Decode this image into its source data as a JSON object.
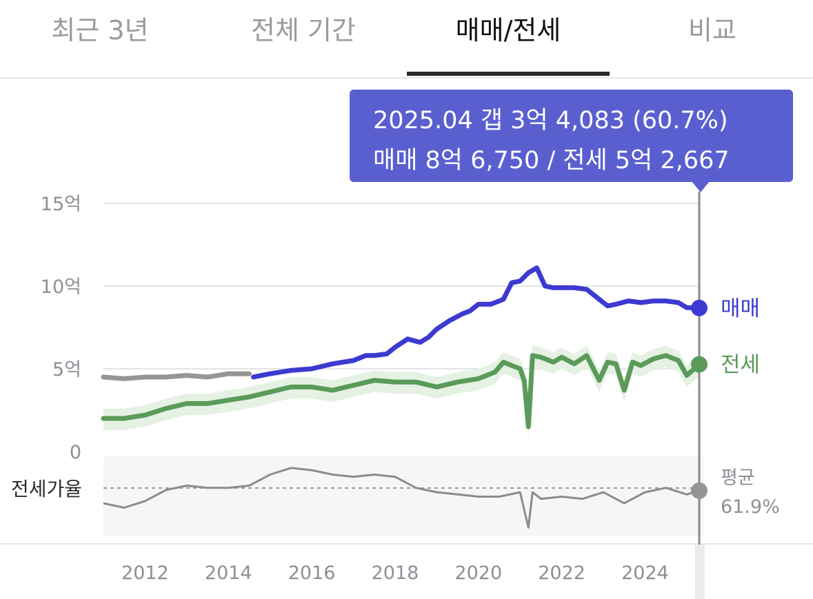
{
  "tabs": [
    {
      "label": "최근 3년",
      "active": false
    },
    {
      "label": "전체 기간",
      "active": false
    },
    {
      "label": "매매/전세",
      "active": true
    },
    {
      "label": "비교",
      "active": false
    }
  ],
  "tooltip": {
    "line1": "2025.04  갭 3억 4,083 (60.7%)",
    "line2": "매매 8억 6,750 / 전세 5억 2,667"
  },
  "colors": {
    "sale": "#3d3ad1",
    "jeonse": "#5a9a5a",
    "band": "#e5f2e3",
    "grey": "#959595",
    "tooltip_bg": "#5a5fd0",
    "grid": "#e4e4e6",
    "ratio_bg": "#f6f6f7"
  },
  "chart_data": {
    "type": "line",
    "ylabel": "",
    "y_unit": "억",
    "ylim": [
      0,
      15
    ],
    "y_ticks": [
      0,
      5,
      10,
      15
    ],
    "y_tick_labels": [
      "0",
      "5억",
      "10억",
      "15억"
    ],
    "xlim": [
      2011.0,
      2025.3
    ],
    "x_ticks": [
      2012,
      2014,
      2016,
      2018,
      2020,
      2022,
      2024
    ],
    "x_tick_labels": [
      "2012",
      "2014",
      "2016",
      "2018",
      "2020",
      "2022",
      "2024"
    ],
    "grid": true,
    "legend": "right-end labels",
    "highlight": {
      "x": 2025.3,
      "label": "2025.04"
    },
    "series": [
      {
        "name": "매매",
        "x": [
          2011.0,
          2011.5,
          2012.0,
          2012.5,
          2013.0,
          2013.5,
          2014.0,
          2014.5
        ],
        "y": [
          4.5,
          4.4,
          4.5,
          4.5,
          4.6,
          4.5,
          4.7,
          4.7
        ],
        "style": "early-grey"
      },
      {
        "name": "매매",
        "x": [
          2014.6,
          2015.0,
          2015.5,
          2016.0,
          2016.5,
          2017.0,
          2017.3,
          2017.5,
          2017.8,
          2018.0,
          2018.3,
          2018.6,
          2018.8,
          2019.0,
          2019.3,
          2019.6,
          2019.8,
          2020.0,
          2020.3,
          2020.6,
          2020.8,
          2021.0,
          2021.2,
          2021.4,
          2021.6,
          2021.8,
          2022.0,
          2022.3,
          2022.6,
          2022.9,
          2023.1,
          2023.3,
          2023.6,
          2023.9,
          2024.2,
          2024.5,
          2024.8,
          2025.0,
          2025.3
        ],
        "y": [
          4.5,
          4.7,
          4.9,
          5.0,
          5.3,
          5.5,
          5.8,
          5.8,
          5.9,
          6.3,
          6.8,
          6.6,
          6.9,
          7.4,
          7.9,
          8.3,
          8.5,
          8.9,
          8.9,
          9.2,
          10.2,
          10.3,
          10.8,
          11.1,
          10.0,
          9.9,
          9.9,
          9.9,
          9.8,
          9.2,
          8.8,
          8.9,
          9.1,
          9.0,
          9.1,
          9.1,
          9.0,
          8.7,
          8.675
        ],
        "style": "main"
      },
      {
        "name": "전세",
        "x": [
          2011.0,
          2011.5,
          2012.0,
          2012.5,
          2013.0,
          2013.5,
          2014.0,
          2014.5,
          2015.0,
          2015.5,
          2016.0,
          2016.5,
          2017.0,
          2017.5,
          2018.0,
          2018.5,
          2019.0,
          2019.5,
          2020.0,
          2020.4,
          2020.6,
          2020.8,
          2021.0,
          2021.1,
          2021.2,
          2021.3,
          2021.5,
          2021.8,
          2022.0,
          2022.3,
          2022.6,
          2022.9,
          2023.1,
          2023.3,
          2023.5,
          2023.7,
          2023.9,
          2024.2,
          2024.5,
          2024.8,
          2025.0,
          2025.3
        ],
        "y": [
          2.0,
          2.0,
          2.2,
          2.6,
          2.9,
          2.9,
          3.1,
          3.3,
          3.6,
          3.9,
          3.9,
          3.7,
          4.0,
          4.3,
          4.2,
          4.2,
          3.9,
          4.2,
          4.4,
          4.8,
          5.4,
          5.2,
          5.0,
          4.3,
          1.5,
          5.8,
          5.7,
          5.4,
          5.7,
          5.3,
          5.8,
          4.3,
          5.4,
          5.3,
          3.7,
          5.4,
          5.2,
          5.6,
          5.8,
          5.5,
          4.6,
          5.2667
        ],
        "style": "main"
      }
    ],
    "ratio": {
      "label": "전세가율",
      "average_label": "평균",
      "average_value": "61.9%",
      "average": 61.9,
      "x": [
        2011.0,
        2011.5,
        2012.0,
        2012.5,
        2013.0,
        2013.5,
        2014.0,
        2014.5,
        2015.0,
        2015.5,
        2016.0,
        2016.5,
        2017.0,
        2017.5,
        2018.0,
        2018.5,
        2019.0,
        2019.5,
        2020.0,
        2020.5,
        2021.0,
        2021.2,
        2021.3,
        2021.5,
        2022.0,
        2022.5,
        2023.0,
        2023.5,
        2024.0,
        2024.5,
        2025.0,
        2025.3
      ],
      "y": [
        55,
        53,
        56,
        61,
        63,
        62,
        62,
        63,
        68,
        71,
        70,
        68,
        67,
        68,
        67,
        62,
        60,
        59,
        58,
        58,
        60,
        44,
        60,
        57,
        58,
        57,
        60,
        55,
        60,
        62,
        59,
        60.7
      ]
    }
  }
}
